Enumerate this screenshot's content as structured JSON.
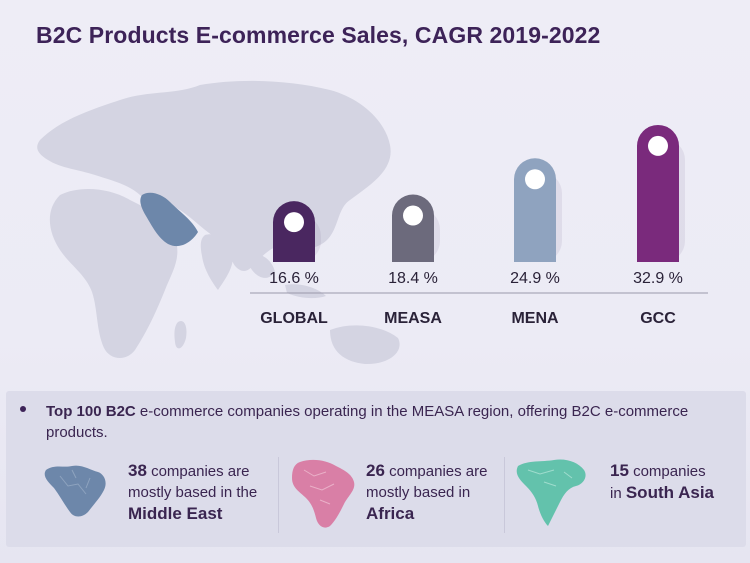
{
  "title": "B2C Products E-commerce Sales, CAGR 2019-2022",
  "chart_data": {
    "type": "bar",
    "categories": [
      "GLOBAL",
      "MEASA",
      "MENA",
      "GCC"
    ],
    "values": [
      16.6,
      18.4,
      24.9,
      32.9
    ],
    "value_labels": [
      "16.6 %",
      "18.4 %",
      "24.9 %",
      "32.9 %"
    ],
    "colors": [
      "#4a2760",
      "#6c6a7c",
      "#8fa3bf",
      "#7a2a7c"
    ],
    "title": "B2C Products E-commerce Sales, CAGR 2019-2022",
    "xlabel": "",
    "ylabel": "",
    "ylim": [
      0,
      36
    ]
  },
  "bullet": {
    "bold": "Top 100 B2C",
    "text": " e-commerce companies operating in the MEASA region, offering B2C e-commerce products."
  },
  "stats": [
    {
      "number": "38",
      "line1": " companies are",
      "line2": "mostly based in the",
      "region": "Middle East",
      "icon": "middle-east-map-icon",
      "color": "#6d87aa"
    },
    {
      "number": "26",
      "line1": " companies are",
      "line2": "mostly based in",
      "region": "Africa",
      "icon": "africa-map-icon",
      "color": "#d97fa6"
    },
    {
      "number": "15",
      "line1": " companies",
      "line2": "in ",
      "region": "South Asia",
      "icon": "south-asia-map-icon",
      "color": "#63c2ac"
    }
  ]
}
